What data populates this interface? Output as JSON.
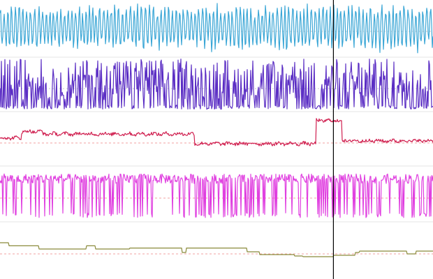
{
  "chart_data": {
    "type": "line",
    "cursor_fraction": 0.77,
    "channels": [
      {
        "kind": "oscillation",
        "color": "#3aa6d6",
        "range": [
          -1.05,
          1.05
        ],
        "period_samples": 5.5,
        "ref_line": "baseline"
      },
      {
        "kind": "spiky",
        "color": "#5b2ec4",
        "range": [
          0,
          1
        ],
        "ref_line": "baseline"
      },
      {
        "kind": "step_noise",
        "color": "#d02050",
        "range": [
          0,
          1
        ],
        "steps": [
          {
            "from": 0.0,
            "to": 0.05,
            "level": 0.52
          },
          {
            "from": 0.05,
            "to": 0.1,
            "level": 0.68
          },
          {
            "from": 0.1,
            "to": 0.45,
            "level": 0.62
          },
          {
            "from": 0.45,
            "to": 0.73,
            "level": 0.38
          },
          {
            "from": 0.73,
            "to": 0.79,
            "level": 0.95
          },
          {
            "from": 0.79,
            "to": 1.0,
            "level": 0.45
          }
        ],
        "ref_line": "ref"
      },
      {
        "kind": "dropouts",
        "color": "#e040e0",
        "range": [
          0,
          1
        ],
        "ref_line": "ref"
      },
      {
        "kind": "step",
        "color": "#8a8a3a",
        "range": [
          0,
          1
        ],
        "levels": [
          {
            "from": 0.0,
            "to": 0.02,
            "level": 1.0
          },
          {
            "from": 0.02,
            "to": 0.09,
            "level": 0.78
          },
          {
            "from": 0.09,
            "to": 0.1,
            "level": 0.55
          },
          {
            "from": 0.1,
            "to": 0.2,
            "level": 0.55
          },
          {
            "from": 0.2,
            "to": 0.22,
            "level": 0.78
          },
          {
            "from": 0.22,
            "to": 0.3,
            "level": 0.55
          },
          {
            "from": 0.3,
            "to": 0.42,
            "level": 0.62
          },
          {
            "from": 0.42,
            "to": 0.43,
            "level": 0.3
          },
          {
            "from": 0.43,
            "to": 0.57,
            "level": 0.62
          },
          {
            "from": 0.57,
            "to": 0.6,
            "level": 0.35
          },
          {
            "from": 0.6,
            "to": 0.68,
            "level": 0.15
          },
          {
            "from": 0.68,
            "to": 0.7,
            "level": 0.05
          },
          {
            "from": 0.7,
            "to": 0.77,
            "level": 0.0
          },
          {
            "from": 0.77,
            "to": 0.82,
            "level": 0.1
          },
          {
            "from": 0.82,
            "to": 0.83,
            "level": 0.3
          },
          {
            "from": 0.83,
            "to": 0.94,
            "level": 0.4
          },
          {
            "from": 0.94,
            "to": 0.96,
            "level": 0.2
          },
          {
            "from": 0.96,
            "to": 1.0,
            "level": 0.4
          }
        ],
        "ref_line": "ref"
      }
    ]
  }
}
